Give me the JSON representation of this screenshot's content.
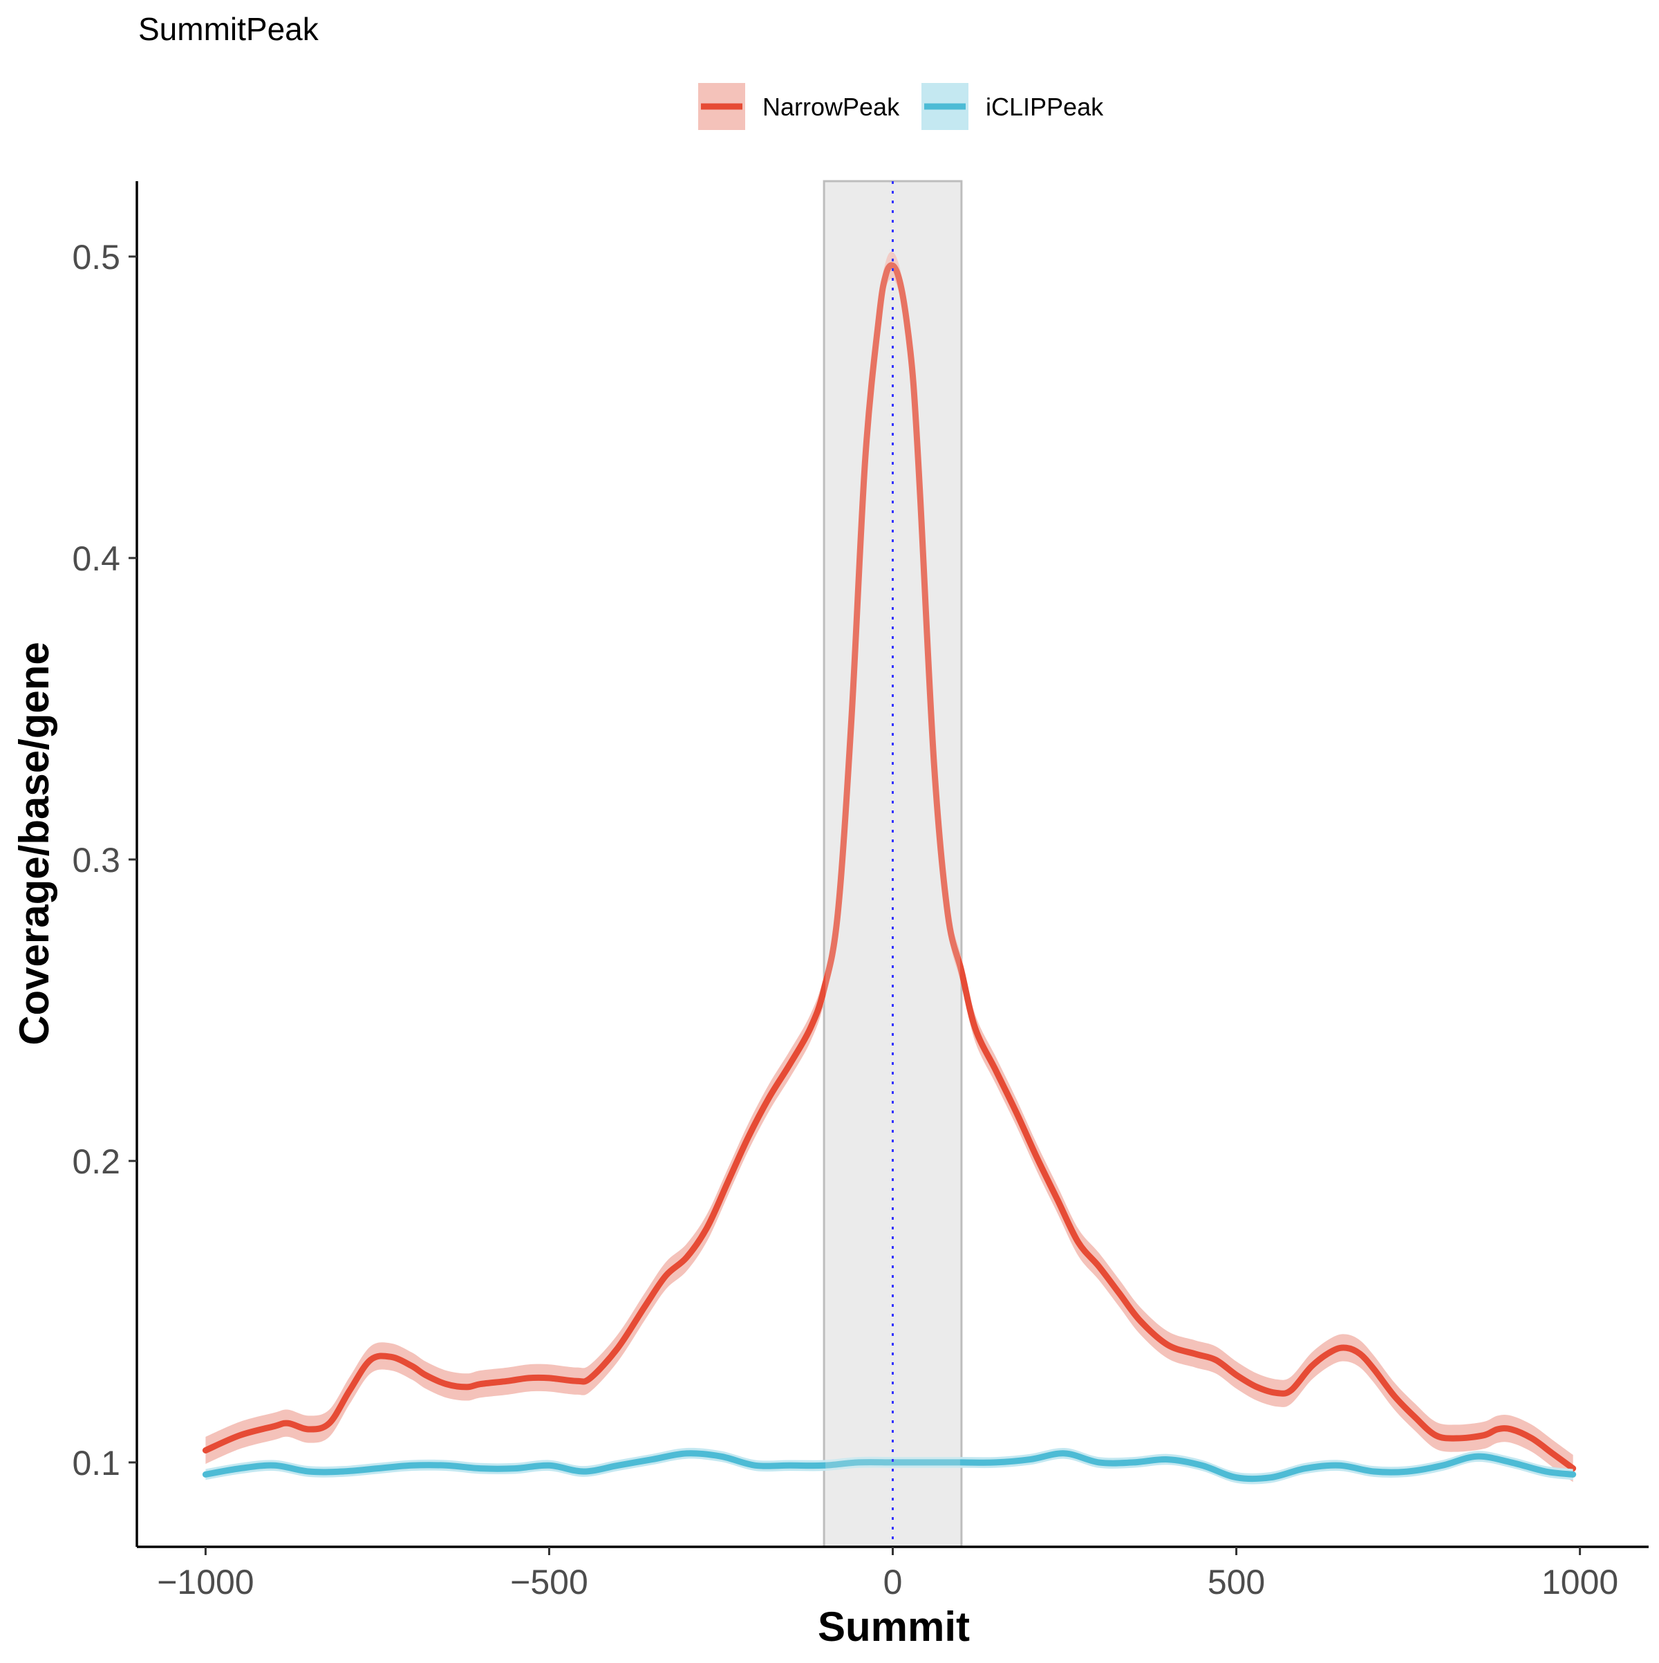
{
  "chart_data": {
    "type": "line",
    "title": "SummitPeak",
    "xlabel": "Summit",
    "ylabel": "Coverage/base/gene",
    "xlim": [
      -1100,
      1100
    ],
    "ylim": [
      0.072,
      0.525
    ],
    "x_ticks": [
      -1000,
      -500,
      0,
      500,
      1000
    ],
    "x_tick_labels": [
      "−1000",
      "−500",
      "0",
      "500",
      "1000"
    ],
    "y_ticks": [
      0.1,
      0.2,
      0.3,
      0.4,
      0.5
    ],
    "y_tick_labels": [
      "0.1",
      "0.2",
      "0.3",
      "0.4",
      "0.5"
    ],
    "grid": false,
    "legend_position": "top",
    "highlight_region": [
      -100,
      100
    ],
    "reference_line_x": 0,
    "series": [
      {
        "name": "NarrowPeak",
        "color": "#e64b35",
        "ribbon_color": "#f4c2ba",
        "ribbon_halfwidth": 0.0045,
        "x": [
          -1000,
          -950,
          -900,
          -880,
          -850,
          -820,
          -790,
          -760,
          -730,
          -700,
          -680,
          -650,
          -620,
          -600,
          -560,
          -530,
          -500,
          -460,
          -440,
          -400,
          -360,
          -330,
          -300,
          -270,
          -240,
          -210,
          -180,
          -150,
          -120,
          -100,
          -80,
          -60,
          -40,
          -20,
          -10,
          0,
          10,
          20,
          30,
          40,
          60,
          80,
          100,
          120,
          150,
          180,
          210,
          240,
          270,
          300,
          330,
          360,
          400,
          440,
          470,
          500,
          530,
          560,
          580,
          610,
          640,
          660,
          680,
          700,
          730,
          760,
          790,
          820,
          860,
          880,
          900,
          930,
          960,
          990
        ],
        "y": [
          0.104,
          0.109,
          0.112,
          0.113,
          0.111,
          0.113,
          0.124,
          0.134,
          0.135,
          0.132,
          0.129,
          0.126,
          0.125,
          0.126,
          0.127,
          0.128,
          0.128,
          0.127,
          0.128,
          0.138,
          0.152,
          0.162,
          0.168,
          0.178,
          0.193,
          0.208,
          0.221,
          0.232,
          0.244,
          0.257,
          0.282,
          0.347,
          0.433,
          0.48,
          0.494,
          0.497,
          0.492,
          0.479,
          0.458,
          0.42,
          0.332,
          0.282,
          0.263,
          0.244,
          0.23,
          0.216,
          0.201,
          0.187,
          0.173,
          0.165,
          0.156,
          0.147,
          0.139,
          0.136,
          0.134,
          0.129,
          0.125,
          0.123,
          0.124,
          0.132,
          0.137,
          0.138,
          0.136,
          0.131,
          0.122,
          0.115,
          0.109,
          0.108,
          0.109,
          0.111,
          0.111,
          0.108,
          0.103,
          0.098
        ]
      },
      {
        "name": "iCLIPPeak",
        "color": "#4dbbd5",
        "ribbon_color": "#c4e8f1",
        "ribbon_halfwidth": 0.0018,
        "x": [
          -1000,
          -950,
          -900,
          -850,
          -800,
          -750,
          -700,
          -650,
          -600,
          -550,
          -500,
          -450,
          -400,
          -350,
          -300,
          -250,
          -200,
          -150,
          -100,
          -50,
          0,
          50,
          100,
          150,
          200,
          250,
          300,
          350,
          400,
          450,
          500,
          550,
          600,
          650,
          700,
          750,
          800,
          850,
          900,
          950,
          990
        ],
        "y": [
          0.096,
          0.098,
          0.099,
          0.097,
          0.097,
          0.098,
          0.099,
          0.099,
          0.098,
          0.098,
          0.099,
          0.097,
          0.099,
          0.101,
          0.103,
          0.102,
          0.099,
          0.099,
          0.099,
          0.1,
          0.1,
          0.1,
          0.1,
          0.1,
          0.101,
          0.103,
          0.1,
          0.1,
          0.101,
          0.099,
          0.095,
          0.095,
          0.098,
          0.099,
          0.097,
          0.097,
          0.099,
          0.102,
          0.1,
          0.097,
          0.096
        ]
      }
    ]
  }
}
